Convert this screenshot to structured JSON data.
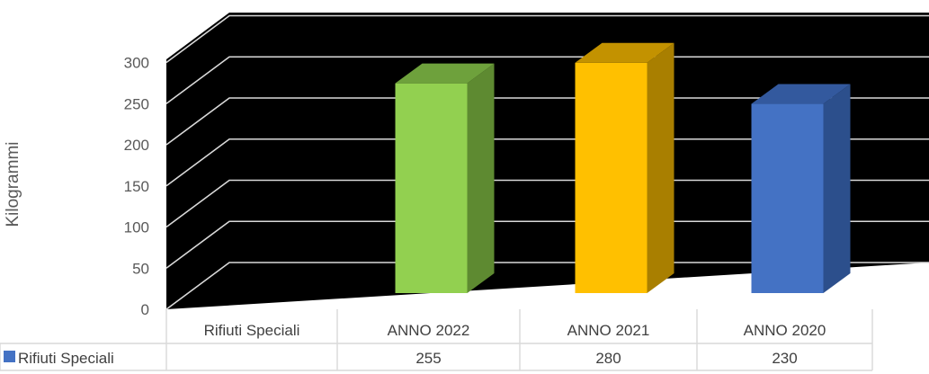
{
  "chart_data": {
    "type": "bar",
    "categories": [
      "Rifiuti Speciali",
      "ANNO 2022",
      "ANNO 2021",
      "ANNO 2020"
    ],
    "values": [
      null,
      255,
      280,
      230
    ],
    "bar_colors": [
      "",
      "#92D050",
      "#FFC000",
      "#4472C4"
    ],
    "side_colors": [
      "",
      "#5E8A31",
      "#A97F00",
      "#2C4F8C"
    ],
    "top_colors": [
      "",
      "#6EA13C",
      "#C39200",
      "#33599E"
    ],
    "ylabel": "Kilogrammi",
    "xlabel": "",
    "ylim": [
      0,
      300
    ],
    "yticks": [
      "0",
      "50",
      "100",
      "150",
      "200",
      "250",
      "300"
    ],
    "background": "#000000",
    "grid": true,
    "data_table": {
      "legend_label": "Rifiuti Speciali",
      "legend_color": "#4472C4",
      "cells": [
        "",
        "255",
        "280",
        "230"
      ]
    }
  }
}
